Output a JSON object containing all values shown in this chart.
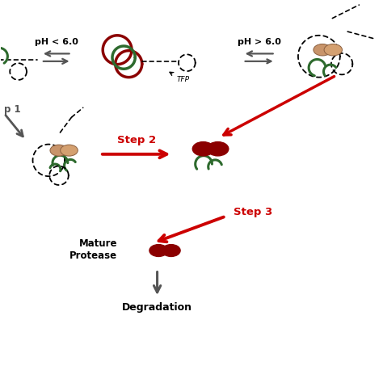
{
  "background_color": "#ffffff",
  "ph_low_text": "pH < 6.0",
  "ph_high_text": "pH > 6.0",
  "tfp_text": "TFP",
  "step1_text": "p 1",
  "step2_text": "Step 2",
  "step3_text": "Step 3",
  "mature_protease_text": "Mature\nProtease",
  "degradation_text": "Degradation",
  "dark_red": "#8B0000",
  "red": "#CC0000",
  "green": "#2D6A2D",
  "dark_gray": "#404040",
  "tan": "#D2A679",
  "light_tan": "#E8C9A0",
  "arrow_gray": "#555555"
}
